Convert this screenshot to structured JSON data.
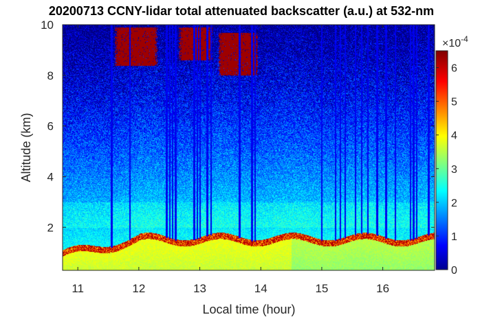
{
  "chart_data": {
    "type": "heatmap",
    "title": "20200713 CCNY-lidar total attenuated backscatter (a.u.) at 532-nm",
    "xlabel": "Local time (hour)",
    "ylabel": "Altitude (km)",
    "xlim": [
      10.75,
      16.85
    ],
    "ylim": [
      0.3,
      10.0
    ],
    "xticks": [
      "11",
      "12",
      "13",
      "14",
      "15",
      "16"
    ],
    "yticks": [
      "2",
      "4",
      "6",
      "8",
      "10"
    ],
    "colorbar": {
      "ticks": [
        "0",
        "1",
        "2",
        "3",
        "4",
        "5",
        "6"
      ],
      "exponent_base": "×10",
      "exponent": "-4",
      "clim": [
        0,
        6.5
      ],
      "colormap": "jet"
    },
    "features": {
      "cirrus_clouds": [
        {
          "x": [
            11.6,
            12.3
          ],
          "y": [
            8.4,
            9.9
          ]
        },
        {
          "x": [
            12.65,
            13.2
          ],
          "y": [
            8.6,
            9.9
          ]
        },
        {
          "x": [
            13.3,
            13.95
          ],
          "y": [
            8.0,
            9.7
          ]
        }
      ],
      "boundary_layer_top_km": 1.5,
      "cloud_shadow_columns": [
        11.55,
        11.85,
        12.45,
        12.5,
        12.55,
        12.6,
        12.9,
        12.95,
        13.0,
        13.12,
        13.18,
        13.65,
        13.85,
        13.9,
        15.0,
        15.22,
        15.3,
        15.38,
        15.55,
        15.65,
        15.75,
        15.9,
        16.05,
        16.2,
        16.45,
        16.5,
        16.55,
        16.75
      ]
    }
  }
}
